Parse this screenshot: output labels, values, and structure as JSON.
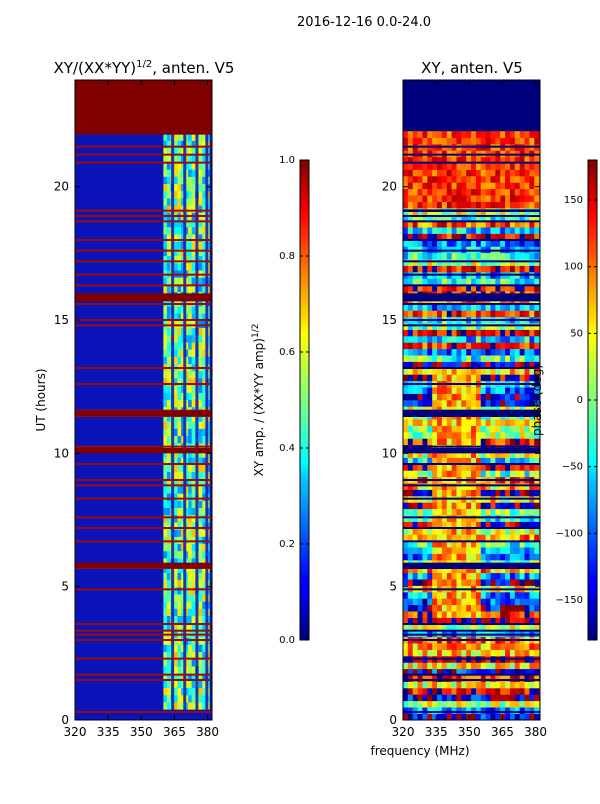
{
  "suptitle": "2016-12-16 0.0-24.0",
  "chart_data": [
    {
      "type": "heatmap",
      "title_main": "XY/(XX*YY)",
      "title_exp": "1/2",
      "title_tail": ", anten. V5",
      "ylabel": "UT (hours)",
      "xlabel": "",
      "xlim": [
        320,
        382
      ],
      "ylim": [
        0,
        24
      ],
      "x_ticks": [
        320,
        335,
        350,
        365,
        380
      ],
      "y_ticks": [
        0,
        5,
        10,
        15,
        20
      ],
      "colorbar": {
        "label_main": "XY amp. / (XX*YY amp)",
        "label_exp": "1/2",
        "range": [
          0,
          1
        ],
        "ticks": [
          "0.0",
          "0.2",
          "0.4",
          "0.6",
          "0.8",
          "1.0"
        ],
        "tick_values": [
          0.0,
          0.2,
          0.4,
          0.6,
          0.8,
          1.0
        ]
      },
      "flagged_band_hours": [
        [
          21.95,
          24.0
        ]
      ],
      "flagged_line_hours": [
        0.3,
        1.5,
        1.7,
        2.3,
        3.0,
        3.2,
        3.35,
        3.6,
        4.9,
        5.7,
        5.85,
        6.7,
        7.2,
        7.6,
        8.3,
        8.8,
        9.0,
        9.6,
        10.1,
        10.25,
        11.4,
        11.5,
        11.6,
        12.6,
        13.2,
        14.8,
        15.0,
        15.6,
        15.8,
        15.95,
        16.3,
        16.7,
        17.2,
        17.6,
        18.0,
        18.7,
        18.9,
        19.1,
        20.9,
        21.2,
        21.5
      ]
    },
    {
      "type": "heatmap",
      "title": "XY, anten. V5",
      "ylabel": "",
      "xlabel": "frequency (MHz)",
      "xlim": [
        320,
        382
      ],
      "ylim": [
        0,
        24
      ],
      "x_ticks": [
        320,
        335,
        350,
        365,
        380
      ],
      "y_ticks": [
        0,
        5,
        10,
        15,
        20
      ],
      "colorbar": {
        "label": "phase (deg)",
        "range": [
          -180,
          180
        ],
        "ticks": [
          "−150",
          "−100",
          "−50",
          "0",
          "50",
          "100",
          "150"
        ],
        "tick_values": [
          -150,
          -100,
          -50,
          0,
          50,
          100,
          150
        ]
      }
    }
  ]
}
